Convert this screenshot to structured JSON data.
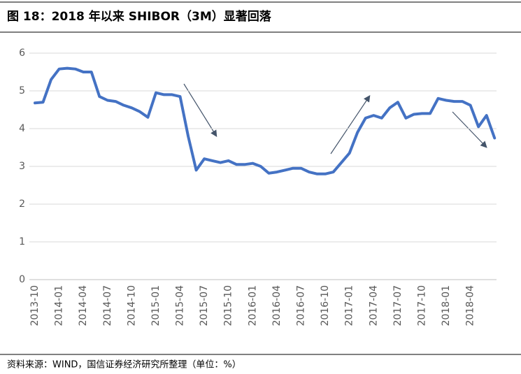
{
  "chart_data": {
    "type": "line",
    "title": "图 18：2018 年以来 SHIBOR（3M）显著回落",
    "source": "资料来源：WIND，国信证券经济研究所整理（单位：%）",
    "x": [
      "2013-10",
      "2013-11",
      "2013-12",
      "2014-01",
      "2014-02",
      "2014-03",
      "2014-04",
      "2014-05",
      "2014-06",
      "2014-07",
      "2014-08",
      "2014-09",
      "2014-10",
      "2014-11",
      "2014-12",
      "2015-01",
      "2015-02",
      "2015-03",
      "2015-04",
      "2015-05",
      "2015-06",
      "2015-07",
      "2015-08",
      "2015-09",
      "2015-10",
      "2015-11",
      "2015-12",
      "2016-01",
      "2016-02",
      "2016-03",
      "2016-04",
      "2016-05",
      "2016-06",
      "2016-07",
      "2016-08",
      "2016-09",
      "2016-10",
      "2016-11",
      "2016-12",
      "2017-01",
      "2017-02",
      "2017-03",
      "2017-04",
      "2017-05",
      "2017-06",
      "2017-07",
      "2017-08",
      "2017-09",
      "2017-10",
      "2017-11",
      "2017-12",
      "2018-01",
      "2018-02",
      "2018-03",
      "2018-04",
      "2018-05",
      "2018-06",
      "2018-07"
    ],
    "series": [
      {
        "name": "SHIBOR（3M）",
        "color": "#4472c4",
        "values": [
          4.68,
          4.7,
          5.3,
          5.58,
          5.6,
          5.58,
          5.5,
          5.5,
          4.85,
          4.75,
          4.72,
          4.62,
          4.55,
          4.45,
          4.3,
          4.95,
          4.9,
          4.9,
          4.85,
          3.8,
          2.9,
          3.2,
          3.15,
          3.1,
          3.15,
          3.05,
          3.05,
          3.08,
          3.0,
          2.82,
          2.85,
          2.9,
          2.95,
          2.95,
          2.85,
          2.8,
          2.8,
          2.85,
          3.1,
          3.35,
          3.9,
          4.28,
          4.35,
          4.28,
          4.55,
          4.7,
          4.28,
          4.38,
          4.4,
          4.4,
          4.8,
          4.75,
          4.72,
          4.72,
          4.62,
          4.05,
          4.35,
          3.75
        ]
      }
    ],
    "xticks": [
      "2013-10",
      "2014-01",
      "2014-04",
      "2014-07",
      "2014-10",
      "2015-01",
      "2015-04",
      "2015-07",
      "2015-10",
      "2016-01",
      "2016-04",
      "2016-07",
      "2016-10",
      "2017-01",
      "2017-04",
      "2017-07",
      "2017-10",
      "2018-01",
      "2018-04"
    ],
    "ylim": [
      0,
      6
    ],
    "yticks": [
      0,
      1,
      2,
      3,
      4,
      5,
      6
    ],
    "grid": true
  }
}
